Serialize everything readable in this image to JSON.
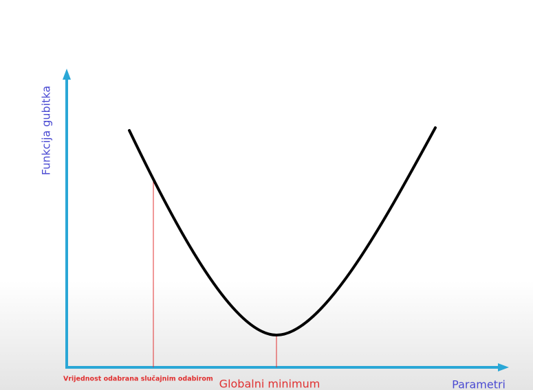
{
  "axes": {
    "y_label": "Funkcija gubitka",
    "x_label": "Parametri"
  },
  "annotations": {
    "random_value": "Vrijednost odabrana slučajnim odabirom",
    "global_minimum": "Globalni minimum"
  }
}
